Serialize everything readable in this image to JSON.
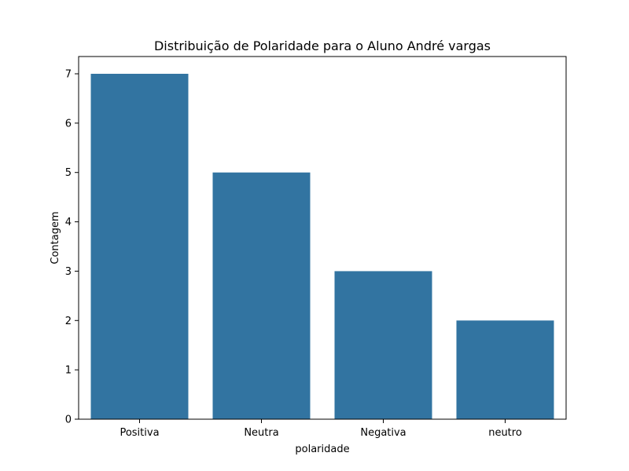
{
  "chart_data": {
    "type": "bar",
    "title": "Distribuição de Polaridade para o Aluno André vargas",
    "xlabel": "polaridade",
    "ylabel": "Contagem",
    "categories": [
      "Positiva",
      "Neutra",
      "Negativa",
      "neutro"
    ],
    "values": [
      7,
      5,
      3,
      2
    ],
    "ylim": [
      0,
      7.35
    ],
    "yticks": [
      0,
      1,
      2,
      3,
      4,
      5,
      6,
      7
    ],
    "grid": false,
    "bar_color": "#3274a1"
  }
}
